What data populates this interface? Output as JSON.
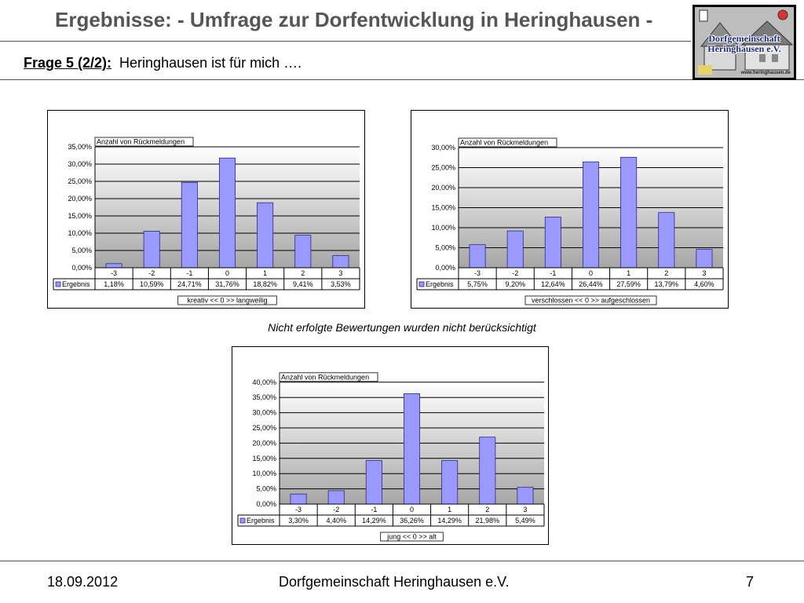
{
  "header": {
    "title": "Ergebnisse: - Umfrage zur Dorfentwicklung in Heringhausen -",
    "question_label": "Frage 5 (2/2):",
    "question_text": "Heringhausen ist für mich …."
  },
  "logo": {
    "line1": "Dorfgemeinschaft",
    "line2": "Heringhausen e.V.",
    "url": "www.heringhausen.de"
  },
  "note": "Nicht erfolgte Bewertungen wurden nicht berücksichtigt",
  "footer": {
    "date": "18.09.2012",
    "organization": "Dorfgemeinschaft Heringhausen e.V.",
    "page": "7"
  },
  "colors": {
    "bar_fill": "#9999ff",
    "bar_stroke": "#2b2b7f",
    "title_text": "#555555"
  },
  "chart_data": [
    {
      "type": "bar",
      "title": "Anzahl von Rückmeldungen",
      "categories": [
        "-3",
        "-2",
        "-1",
        "0",
        "1",
        "2",
        "3"
      ],
      "series": [
        {
          "name": "Ergebnis",
          "values": [
            1.18,
            10.59,
            24.71,
            31.76,
            18.82,
            9.41,
            3.53
          ]
        }
      ],
      "value_labels": [
        "1,18%",
        "10,59%",
        "24,71%",
        "31,76%",
        "18,82%",
        "9,41%",
        "3,53%"
      ],
      "y_ticks": [
        "0,00%",
        "5,00%",
        "10,00%",
        "15,00%",
        "20,00%",
        "25,00%",
        "30,00%",
        "35,00%"
      ],
      "ylim": [
        0,
        35
      ],
      "xlabel": "kreativ << 0 >> langweilig",
      "ylabel": "",
      "grid": true,
      "legend": "data-table"
    },
    {
      "type": "bar",
      "title": "Anzahl von Rückmeldungen",
      "categories": [
        "-3",
        "-2",
        "-1",
        "0",
        "1",
        "2",
        "3"
      ],
      "series": [
        {
          "name": "Ergebnis",
          "values": [
            5.75,
            9.2,
            12.64,
            26.44,
            27.59,
            13.79,
            4.6
          ]
        }
      ],
      "value_labels": [
        "5,75%",
        "9,20%",
        "12,64%",
        "26,44%",
        "27,59%",
        "13,79%",
        "4,60%"
      ],
      "y_ticks": [
        "0,00%",
        "5,00%",
        "10,00%",
        "15,00%",
        "20,00%",
        "25,00%",
        "30,00%"
      ],
      "ylim": [
        0,
        30
      ],
      "xlabel": "verschlossen << 0 >> aufgeschlossen",
      "ylabel": "",
      "grid": true,
      "legend": "data-table"
    },
    {
      "type": "bar",
      "title": "Anzahl von Rückmeldungen",
      "categories": [
        "-3",
        "-2",
        "-1",
        "0",
        "1",
        "2",
        "3"
      ],
      "series": [
        {
          "name": "Ergebnis",
          "values": [
            3.3,
            4.4,
            14.29,
            36.26,
            14.29,
            21.98,
            5.49
          ]
        }
      ],
      "value_labels": [
        "3,30%",
        "4,40%",
        "14,29%",
        "36,26%",
        "14,29%",
        "21,98%",
        "5,49%"
      ],
      "y_ticks": [
        "0,00%",
        "5,00%",
        "10,00%",
        "15,00%",
        "20,00%",
        "25,00%",
        "30,00%",
        "35,00%",
        "40,00%"
      ],
      "ylim": [
        0,
        40
      ],
      "xlabel": "jung << 0 >> alt",
      "ylabel": "",
      "grid": true,
      "legend": "data-table"
    }
  ]
}
